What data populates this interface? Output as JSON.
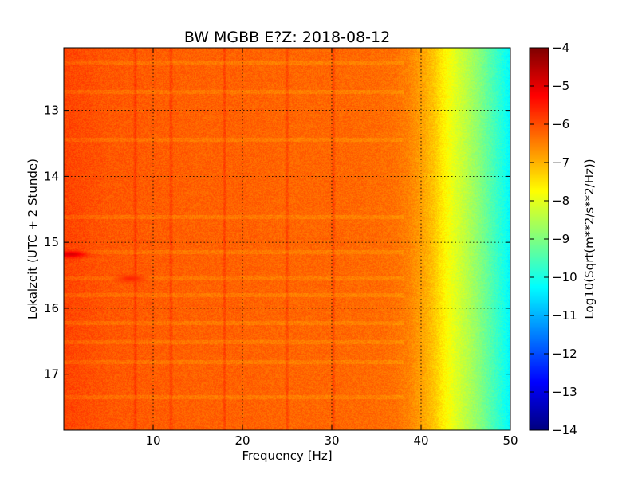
{
  "chart_data": {
    "type": "heatmap",
    "title": "BW MGBB E?Z: 2018-08-12",
    "xlabel": "Frequency [Hz]",
    "ylabel": "Lokalzeit (UTC + 2 Stunde)",
    "colorbar_label": "Log10(Sqrt(m**2/s**2/Hz))",
    "xlim": [
      0,
      50
    ],
    "ylim": [
      12.05,
      17.85
    ],
    "y_inverted": true,
    "clim": [
      -14,
      -4
    ],
    "x_ticks": [
      10,
      20,
      30,
      40,
      50
    ],
    "y_ticks": [
      13,
      14,
      15,
      16,
      17
    ],
    "colorbar_ticks": [
      -4,
      -5,
      -6,
      -7,
      -8,
      -9,
      -10,
      -11,
      -12,
      -13,
      -14
    ],
    "colormap": "jet",
    "grid": true,
    "profile_freq": [
      0,
      5,
      10,
      15,
      20,
      25,
      30,
      35,
      37,
      38.5,
      40,
      41.5,
      42.5,
      43.5,
      45,
      46.5,
      48,
      49,
      50
    ],
    "profile_level": [
      -5.9,
      -6.1,
      -6.15,
      -6.2,
      -6.2,
      -6.25,
      -6.25,
      -6.3,
      -6.35,
      -6.5,
      -6.8,
      -7.2,
      -7.6,
      -7.95,
      -8.4,
      -8.9,
      -9.5,
      -9.9,
      -10.3
    ],
    "vertical_lines_hz": [
      8,
      12,
      18,
      25,
      30.2
    ],
    "horizontal_bands_hours": [
      12.27,
      12.72,
      13.45,
      14.62,
      15.15,
      15.55,
      15.8,
      16.22,
      16.52,
      16.82,
      17.35
    ],
    "hot_spots": [
      {
        "freq_hz": 0.8,
        "hour": 15.18,
        "level": -4.9
      },
      {
        "freq_hz": 7.5,
        "hour": 15.55,
        "level": -5.6
      }
    ]
  }
}
